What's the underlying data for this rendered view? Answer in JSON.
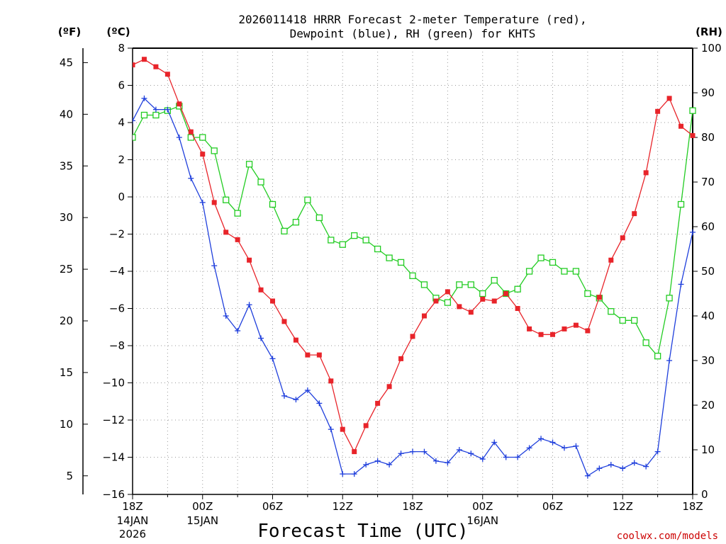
{
  "chart_data": {
    "type": "line",
    "title_line1": "2026011418 HRRR Forecast 2-meter Temperature (red),",
    "title_line2": "Dewpoint (blue), RH (green) for KHTS",
    "xlabel": "Forecast Time (UTC)",
    "credit": "coolwx.com/models",
    "units": {
      "fahrenheit": "(ºF)",
      "celsius": "(ºC)",
      "rh": "(RH)"
    },
    "x_range_hours": [
      0,
      48
    ],
    "celsius_axis": {
      "range": [
        -16,
        8
      ],
      "ticks": [
        "8",
        "6",
        "4",
        "2",
        "0",
        "−2",
        "−4",
        "−6",
        "−8",
        "−10",
        "−12",
        "−14",
        "−16"
      ],
      "values": [
        8,
        6,
        4,
        2,
        0,
        -2,
        -4,
        -6,
        -8,
        -10,
        -12,
        -14,
        -16
      ]
    },
    "fahrenheit_axis": {
      "ticks": [
        "45",
        "40",
        "35",
        "30",
        "25",
        "20",
        "15",
        "10",
        "5"
      ],
      "values": [
        45,
        40,
        35,
        30,
        25,
        20,
        15,
        10,
        5
      ]
    },
    "rh_axis": {
      "range": [
        0,
        100
      ],
      "ticks": [
        "100",
        "90",
        "80",
        "70",
        "60",
        "50",
        "40",
        "30",
        "20",
        "10",
        "0"
      ],
      "values": [
        100,
        90,
        80,
        70,
        60,
        50,
        40,
        30,
        20,
        10,
        0
      ]
    },
    "x_ticks": [
      {
        "hour": 0,
        "label": "18Z",
        "sub1": "14JAN",
        "sub2": "2026"
      },
      {
        "hour": 6,
        "label": "00Z",
        "sub1": "15JAN",
        "sub2": ""
      },
      {
        "hour": 12,
        "label": "06Z",
        "sub1": "",
        "sub2": ""
      },
      {
        "hour": 18,
        "label": "12Z",
        "sub1": "",
        "sub2": ""
      },
      {
        "hour": 24,
        "label": "18Z",
        "sub1": "",
        "sub2": ""
      },
      {
        "hour": 30,
        "label": "00Z",
        "sub1": "16JAN",
        "sub2": ""
      },
      {
        "hour": 36,
        "label": "06Z",
        "sub1": "",
        "sub2": ""
      },
      {
        "hour": 42,
        "label": "12Z",
        "sub1": "",
        "sub2": ""
      },
      {
        "hour": 48,
        "label": "18Z",
        "sub1": "",
        "sub2": ""
      }
    ],
    "series": [
      {
        "name": "Temperature",
        "axis": "celsius",
        "color": "#e8242a",
        "marker": "filled-square",
        "values": [
          7.1,
          7.4,
          7.0,
          6.6,
          5.0,
          3.5,
          2.3,
          -0.3,
          -1.9,
          -2.3,
          -3.4,
          -5.0,
          -5.6,
          -6.7,
          -7.7,
          -8.5,
          -8.5,
          -9.9,
          -12.5,
          -13.7,
          -12.3,
          -11.1,
          -10.2,
          -8.7,
          -7.5,
          -6.4,
          -5.6,
          -5.1,
          -5.9,
          -6.2,
          -5.5,
          -5.6,
          -5.2,
          -6.0,
          -7.1,
          -7.4,
          -7.4,
          -7.1,
          -6.9,
          -7.2,
          -5.4,
          -3.4,
          -2.2,
          -0.9,
          1.3,
          4.6,
          5.3,
          3.8,
          3.3
        ]
      },
      {
        "name": "Dewpoint",
        "axis": "celsius",
        "color": "#1f3fdc",
        "marker": "plus",
        "values": [
          4.1,
          5.3,
          4.7,
          4.7,
          3.2,
          1.0,
          -0.3,
          -3.7,
          -6.4,
          -7.2,
          -5.8,
          -7.6,
          -8.7,
          -10.7,
          -10.9,
          -10.4,
          -11.1,
          -12.5,
          -14.9,
          -14.9,
          -14.4,
          -14.2,
          -14.4,
          -13.8,
          -13.7,
          -13.7,
          -14.2,
          -14.3,
          -13.6,
          -13.8,
          -14.1,
          -13.2,
          -14.0,
          -14.0,
          -13.5,
          -13.0,
          -13.2,
          -13.5,
          -13.4,
          -15.0,
          -14.6,
          -14.4,
          -14.6,
          -14.3,
          -14.5,
          -13.7,
          -8.8,
          -4.7,
          -1.9
        ]
      },
      {
        "name": "RH",
        "axis": "rh",
        "color": "#22cc22",
        "marker": "open-square",
        "values": [
          80,
          85,
          85,
          86,
          87,
          80,
          80,
          77,
          66,
          63,
          74,
          70,
          65,
          59,
          61,
          66,
          62,
          57,
          56,
          58,
          57,
          55,
          53,
          52,
          49,
          47,
          44,
          43,
          47,
          47,
          45,
          48,
          45,
          46,
          50,
          53,
          52,
          50,
          50,
          45,
          44,
          41,
          39,
          39,
          34,
          31,
          44,
          65,
          86
        ]
      }
    ]
  }
}
